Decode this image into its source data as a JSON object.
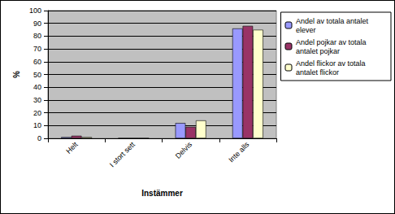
{
  "chart_data": {
    "type": "bar",
    "categories": [
      "Helt",
      "I stort sett",
      "Delvis",
      "Inte alls"
    ],
    "series": [
      {
        "name": "Andel av totala antalet elever",
        "color": "#9999ff",
        "values": [
          1,
          0,
          12,
          86
        ]
      },
      {
        "name": "Andel pojkar av totala antalet pojkar",
        "color": "#993366",
        "values": [
          2,
          0,
          9,
          88
        ]
      },
      {
        "name": "Andel flickor av totala antalet flickor",
        "color": "#ffffcc",
        "values": [
          1,
          0,
          14,
          85
        ]
      }
    ],
    "xlabel": "Instämmer",
    "ylabel": "%",
    "ylim": [
      0,
      100
    ],
    "yticks": [
      0,
      10,
      20,
      30,
      40,
      50,
      60,
      70,
      80,
      90,
      100
    ],
    "grid": true,
    "legend": "right"
  }
}
